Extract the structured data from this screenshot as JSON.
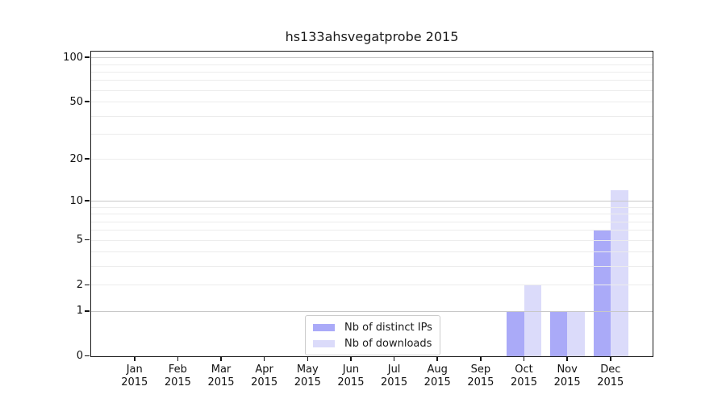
{
  "colors": {
    "major_grid": "#c8c8c8",
    "minor_grid": "#ececec",
    "axis": "#1a1a1a",
    "legend_border": "#cccccc",
    "background": "#ffffff"
  },
  "chart_data": {
    "type": "bar",
    "title": "hs133ahsvegatprobe 2015",
    "x": {
      "categories": [
        "Jan",
        "Feb",
        "Mar",
        "Apr",
        "May",
        "Jun",
        "Jul",
        "Aug",
        "Sep",
        "Oct",
        "Nov",
        "Dec"
      ],
      "year": "2015"
    },
    "y": {
      "scale": "log(value+1)",
      "ticks": [
        100,
        50,
        20,
        10,
        5,
        2,
        1,
        0
      ],
      "major_gridlines": [
        1,
        10,
        100
      ],
      "minor_gridlines": [
        2,
        3,
        4,
        5,
        6,
        7,
        8,
        9,
        20,
        30,
        40,
        50,
        60,
        70,
        80,
        90
      ],
      "axis_max": 108.8
    },
    "series": [
      {
        "name": "Nb of distinct IPs",
        "color": "#aaaaf8",
        "values": [
          0,
          0,
          0,
          0,
          0,
          0,
          0,
          0,
          0,
          1,
          1,
          6
        ]
      },
      {
        "name": "Nb of downloads",
        "color": "#dbdbfa",
        "values": [
          0,
          0,
          0,
          0,
          0,
          0,
          0,
          0,
          0,
          2,
          1,
          12
        ]
      }
    ],
    "legend_position": "lower center",
    "grid": true
  }
}
